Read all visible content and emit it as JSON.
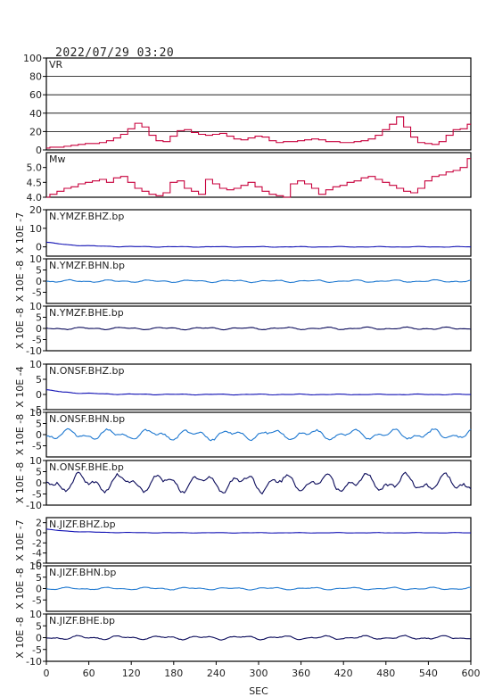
{
  "title": "2022/07/29  03:20",
  "colors": {
    "frame": "#000000",
    "grid": "#000000",
    "vr_mw": "#c8003c",
    "bhz": "#1010b4",
    "bhn": "#1e78d0",
    "bhe": "#0a0a5a"
  },
  "chart_data": {
    "type": "line",
    "xlabel": "SEC",
    "x_ticks": [
      "0",
      "60",
      "120",
      "180",
      "240",
      "300",
      "360",
      "420",
      "480",
      "540",
      "600"
    ],
    "xlim": [
      0,
      600
    ],
    "panels": [
      {
        "label": "VR",
        "type": "line",
        "color": "vr_mw",
        "ylim": [
          0,
          100
        ],
        "ticks": [
          "0",
          "20",
          "40",
          "60",
          "80",
          "100"
        ],
        "grid": true,
        "ylabel": "",
        "x": [
          0,
          10,
          20,
          30,
          40,
          50,
          60,
          70,
          80,
          90,
          100,
          110,
          120,
          130,
          140,
          150,
          160,
          170,
          180,
          190,
          200,
          210,
          220,
          230,
          240,
          250,
          260,
          270,
          280,
          290,
          300,
          310,
          320,
          330,
          340,
          350,
          360,
          370,
          380,
          390,
          400,
          410,
          420,
          430,
          440,
          450,
          460,
          470,
          480,
          490,
          500,
          510,
          520,
          530,
          540,
          550,
          560,
          570,
          580,
          590,
          600
        ],
        "values": [
          2,
          3,
          3,
          4,
          5,
          6,
          7,
          7,
          8,
          10,
          13,
          17,
          23,
          29,
          25,
          16,
          10,
          9,
          15,
          21,
          22,
          19,
          17,
          16,
          17,
          18,
          15,
          12,
          11,
          13,
          15,
          14,
          10,
          8,
          9,
          9,
          10,
          11,
          12,
          11,
          9,
          9,
          8,
          8,
          9,
          10,
          12,
          16,
          22,
          28,
          36,
          25,
          14,
          8,
          7,
          6,
          9,
          16,
          22,
          23,
          28
        ]
      },
      {
        "label": "Mw",
        "type": "line",
        "color": "vr_mw",
        "ylim": [
          4.0,
          5.5
        ],
        "ticks": [
          "4.0",
          "4.5",
          "5.0"
        ],
        "grid": false,
        "ylabel": "",
        "x": [
          0,
          10,
          20,
          30,
          40,
          50,
          60,
          70,
          80,
          90,
          100,
          110,
          120,
          130,
          140,
          150,
          160,
          170,
          180,
          190,
          200,
          210,
          220,
          230,
          240,
          250,
          260,
          270,
          280,
          290,
          300,
          310,
          320,
          330,
          340,
          350,
          360,
          370,
          380,
          390,
          400,
          410,
          420,
          430,
          440,
          450,
          460,
          470,
          480,
          490,
          500,
          510,
          520,
          530,
          540,
          550,
          560,
          570,
          580,
          590,
          600
        ],
        "values": [
          4.0,
          4.1,
          4.2,
          4.3,
          4.35,
          4.45,
          4.5,
          4.55,
          4.6,
          4.5,
          4.65,
          4.7,
          4.5,
          4.3,
          4.2,
          4.1,
          4.05,
          4.15,
          4.5,
          4.55,
          4.3,
          4.2,
          4.1,
          4.6,
          4.45,
          4.3,
          4.25,
          4.3,
          4.4,
          4.5,
          4.35,
          4.2,
          4.1,
          4.05,
          4.0,
          4.45,
          4.55,
          4.45,
          4.3,
          4.1,
          4.25,
          4.35,
          4.4,
          4.5,
          4.55,
          4.65,
          4.7,
          4.6,
          4.5,
          4.4,
          4.3,
          4.2,
          4.15,
          4.3,
          4.55,
          4.7,
          4.75,
          4.85,
          4.9,
          5.0,
          5.3
        ]
      },
      {
        "label": "N.YMZF.BHZ.bp",
        "type": "waveform",
        "color": "bhz",
        "ylim": [
          -5,
          20
        ],
        "ticks": [
          "0",
          "10",
          "20"
        ],
        "ylabel": "X 10E -7",
        "decay": 40,
        "base": 2.5,
        "noise": 0.2
      },
      {
        "label": "N.YMZF.BHN.bp",
        "type": "waveform",
        "color": "bhn",
        "ylim": [
          -10,
          10
        ],
        "ticks": [
          "-5",
          "0",
          "5",
          "10"
        ],
        "ylabel": "X 10E -8",
        "decay": 0,
        "base": 0,
        "noise": 0.6
      },
      {
        "label": "N.YMZF.BHE.bp",
        "type": "waveform",
        "color": "bhe",
        "ylim": [
          -10,
          10
        ],
        "ticks": [
          "-10",
          "-5",
          "0",
          "5",
          "10"
        ],
        "ylabel": "X 10E -8",
        "decay": 0,
        "base": 0,
        "noise": 0.6
      },
      {
        "label": "N.ONSF.BHZ.bp",
        "type": "waveform",
        "color": "bhz",
        "ylim": [
          -5,
          10
        ],
        "ticks": [
          "-5",
          "0",
          "5",
          "10"
        ],
        "ylabel": "X 10E -4",
        "decay": 40,
        "base": 1.5,
        "noise": 0.15
      },
      {
        "label": "N.ONSF.BHN.bp",
        "type": "waveform",
        "color": "bhn",
        "ylim": [
          -10,
          10
        ],
        "ticks": [
          "-5",
          "0",
          "5",
          "10"
        ],
        "ylabel": "X 10E -8",
        "decay": 0,
        "base": 0,
        "noise": 2.5
      },
      {
        "label": "N.ONSF.BHE.bp",
        "type": "waveform",
        "color": "bhe",
        "ylim": [
          -10,
          10
        ],
        "ticks": [
          "-10",
          "-5",
          "0",
          "5",
          "10"
        ],
        "ylabel": "X 10E -8",
        "decay": 0,
        "base": 0,
        "noise": 4.5
      },
      {
        "label": "N.JIZF.BHZ.bp",
        "type": "waveform",
        "color": "bhz",
        "ylim": [
          -6,
          3
        ],
        "ticks": [
          "-6",
          "-4",
          "-2",
          "0",
          "2"
        ],
        "ylabel": "X 10E -7",
        "decay": 40,
        "base": 0.7,
        "noise": 0.05
      },
      {
        "label": "N.JIZF.BHN.bp",
        "type": "waveform",
        "color": "bhn",
        "ylim": [
          -10,
          10
        ],
        "ticks": [
          "-5",
          "0",
          "5",
          "10"
        ],
        "ylabel": "X 10E -8",
        "decay": 0,
        "base": 0,
        "noise": 0.6
      },
      {
        "label": "N.JIZF.BHE.bp",
        "type": "waveform",
        "color": "bhe",
        "ylim": [
          -10,
          10
        ],
        "ticks": [
          "-10",
          "-5",
          "0",
          "5",
          "10"
        ],
        "ylabel": "X 10E -8",
        "decay": 0,
        "base": 0,
        "noise": 0.9
      }
    ]
  }
}
